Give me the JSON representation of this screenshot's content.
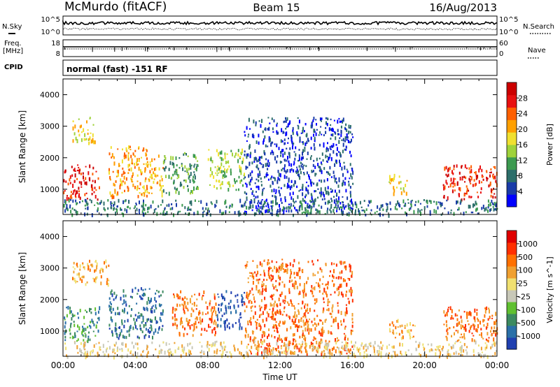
{
  "header": {
    "station": "McMurdo (fitACF)",
    "beam": "Beam 15",
    "date": "16/Aug/2013"
  },
  "top_panels": {
    "nsky_label": "N.Sky",
    "nsearch_label": "N.Search",
    "noise_ticks": [
      "10^5",
      "10^0"
    ],
    "freq_label_1": "Freq.",
    "freq_label_2": "[MHz]",
    "freq_ticks": [
      "18",
      "8"
    ],
    "nave_label": "Nave",
    "nave_ticks": [
      "60",
      "0"
    ],
    "cpid_label": "CPID",
    "cpid_text": "normal (fast) -151 RF"
  },
  "chart_data": [
    {
      "type": "heatmap",
      "name": "power",
      "ylabel": "Slant Range [km]",
      "ylim": [
        200,
        4500
      ],
      "yticks": [
        1000,
        2000,
        3000,
        4000
      ],
      "xlim": [
        0,
        24
      ],
      "colorbar_label": "Power [dB]",
      "colorbar_ticks": [
        "28",
        "24",
        "20",
        "16",
        "12",
        "8",
        "4"
      ],
      "colors": [
        "#0000ff",
        "#1a3ca8",
        "#2c6e6a",
        "#3c9a50",
        "#9fd23a",
        "#f0e030",
        "#ffa000",
        "#ff6000",
        "#e81010",
        "#cc0000"
      ],
      "regions": [
        {
          "t0": 0.0,
          "t1": 2.0,
          "r0": 700,
          "r1": 1800,
          "level": 8
        },
        {
          "t0": 0.5,
          "t1": 1.8,
          "r0": 2500,
          "r1": 3300,
          "level": 5
        },
        {
          "t0": 2.5,
          "t1": 5.5,
          "r0": 800,
          "r1": 2400,
          "level": 6
        },
        {
          "t0": 5.5,
          "t1": 7.5,
          "r0": 900,
          "r1": 2200,
          "level": 3
        },
        {
          "t0": 8.0,
          "t1": 10.0,
          "r0": 1000,
          "r1": 2300,
          "level": 4
        },
        {
          "t0": 10.0,
          "t1": 16.0,
          "r0": 300,
          "r1": 3300,
          "level": 1
        },
        {
          "t0": 18.0,
          "t1": 19.0,
          "r0": 900,
          "r1": 1500,
          "level": 5
        },
        {
          "t0": 21.0,
          "t1": 24.0,
          "r0": 700,
          "r1": 1800,
          "level": 8
        },
        {
          "t0": 0.0,
          "t1": 24.0,
          "r0": 220,
          "r1": 700,
          "level": 2
        }
      ]
    },
    {
      "type": "heatmap",
      "name": "velocity",
      "ylabel": "Slant Range [km]",
      "xlabel": "Time UT",
      "ylim": [
        200,
        4500
      ],
      "yticks": [
        1000,
        2000,
        3000,
        4000
      ],
      "xlim": [
        0,
        24
      ],
      "xticks": [
        "00:00",
        "04:00",
        "08:00",
        "12:00",
        "16:00",
        "20:00",
        "00:00"
      ],
      "colorbar_label": "Velocity [m s^-1]",
      "colorbar_ticks": [
        "1000",
        "500",
        "100",
        "25",
        "-25",
        "-100",
        "-500",
        "-1000"
      ],
      "colors": [
        "#2040b0",
        "#2a70a8",
        "#3c8a60",
        "#60c030",
        "#c8c8b8",
        "#f0e070",
        "#f0a030",
        "#ff7000",
        "#ff3000",
        "#e00000"
      ],
      "regions": [
        {
          "t0": 0.0,
          "t1": 2.0,
          "r0": 700,
          "r1": 1800,
          "level": 2
        },
        {
          "t0": 0.5,
          "t1": 2.5,
          "r0": 2500,
          "r1": 3300,
          "level": 6
        },
        {
          "t0": 2.5,
          "t1": 5.5,
          "r0": 800,
          "r1": 2400,
          "level": 1
        },
        {
          "t0": 6.0,
          "t1": 8.5,
          "r0": 900,
          "r1": 2300,
          "level": 7
        },
        {
          "t0": 8.5,
          "t1": 10.0,
          "r0": 1100,
          "r1": 2300,
          "level": 0
        },
        {
          "t0": 10.0,
          "t1": 16.0,
          "r0": 300,
          "r1": 3300,
          "level": 7
        },
        {
          "t0": 18.0,
          "t1": 19.5,
          "r0": 800,
          "r1": 1400,
          "level": 6
        },
        {
          "t0": 21.0,
          "t1": 24.0,
          "r0": 700,
          "r1": 1800,
          "level": 7
        },
        {
          "t0": 0.0,
          "t1": 24.0,
          "r0": 220,
          "r1": 700,
          "level": 5
        }
      ]
    }
  ]
}
